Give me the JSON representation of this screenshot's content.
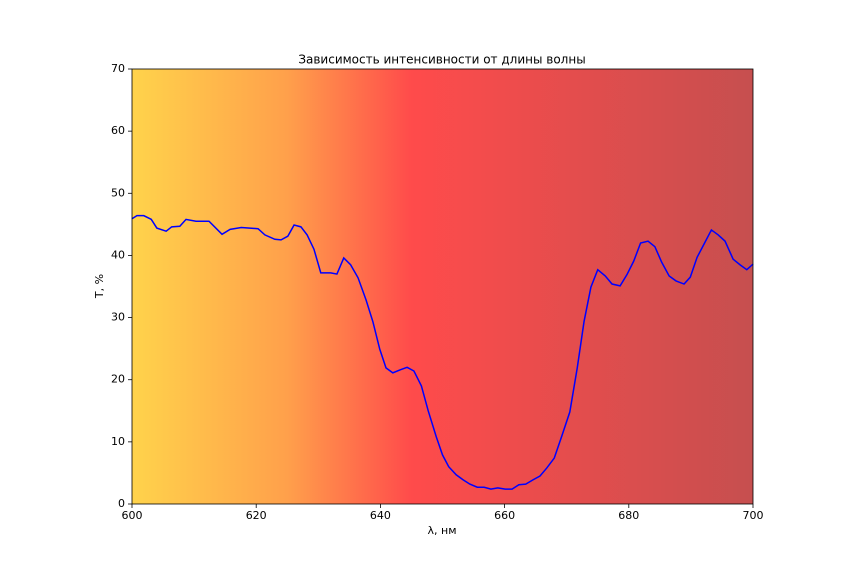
{
  "chart_data": {
    "type": "line",
    "title": "Зависимость интенсивности от длины волны",
    "xlabel": "λ, нм",
    "ylabel": "T, %",
    "x": [
      600,
      600.8,
      601.9,
      603.1,
      604.0,
      605.5,
      606.4,
      607.7,
      608.7,
      610.3,
      612.4,
      614.5,
      615.8,
      617.6,
      620.3,
      621.4,
      623.0,
      624.0,
      625.1,
      626.1,
      627.2,
      628.2,
      629.3,
      630.4,
      632.0,
      633.0,
      634.1,
      635.2,
      636.4,
      637.7,
      638.8,
      639.9,
      640.9,
      642.0,
      643.2,
      644.3,
      645.4,
      646.6,
      647.7,
      649.0,
      650.0,
      651.0,
      652.2,
      653.3,
      654.4,
      655.6,
      656.7,
      657.8,
      658.9,
      660.1,
      661.2,
      662.3,
      663.4,
      664.6,
      665.7,
      666.8,
      668.0,
      669.2,
      670.5,
      671.7,
      672.8,
      673.9,
      675.0,
      676.2,
      677.3,
      678.6,
      679.7,
      680.8,
      681.9,
      683.1,
      684.2,
      685.3,
      686.5,
      687.6,
      688.9,
      689.9,
      691.0,
      692.1,
      693.3,
      694.4,
      695.5,
      696.8,
      697.9,
      699.0,
      700.0
    ],
    "series": [
      {
        "name": "T",
        "color": "#0000ff",
        "values": [
          45.9,
          46.4,
          46.4,
          45.8,
          44.4,
          43.9,
          44.6,
          44.7,
          45.8,
          45.5,
          45.5,
          43.4,
          44.2,
          44.5,
          44.3,
          43.3,
          42.6,
          42.5,
          43.1,
          44.9,
          44.6,
          43.3,
          41.0,
          37.2,
          37.2,
          37.0,
          39.6,
          38.5,
          36.4,
          32.8,
          29.3,
          24.9,
          21.9,
          21.1,
          21.6,
          22.0,
          21.4,
          19.0,
          15.0,
          10.8,
          7.9,
          6.0,
          4.7,
          3.9,
          3.2,
          2.7,
          2.7,
          2.4,
          2.6,
          2.4,
          2.4,
          3.1,
          3.2,
          3.9,
          4.5,
          5.8,
          7.4,
          10.9,
          14.8,
          21.9,
          29.4,
          34.9,
          37.7,
          36.7,
          35.4,
          35.1,
          36.9,
          39.1,
          42.0,
          42.3,
          41.4,
          38.9,
          36.7,
          35.9,
          35.4,
          36.5,
          39.7,
          41.8,
          44.1,
          43.3,
          42.3,
          39.4,
          38.5,
          37.7,
          38.6
        ]
      }
    ],
    "xlim": [
      600,
      700
    ],
    "xticks": [
      600,
      620,
      640,
      660,
      680,
      700
    ],
    "ylim": [
      0,
      70
    ],
    "yticks": [
      0,
      10,
      20,
      30,
      40,
      50,
      60,
      70
    ]
  }
}
